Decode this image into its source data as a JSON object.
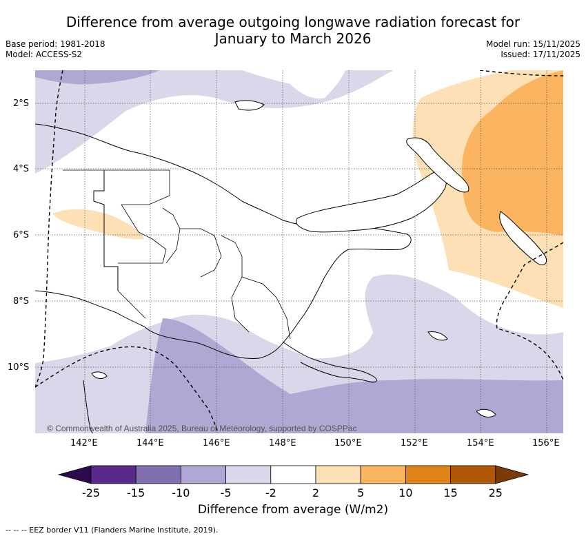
{
  "title_line1": "Difference from average outgoing longwave radiation forecast for",
  "title_line2": "January to March 2026",
  "meta": {
    "base_period": "Base period: 1981-2018",
    "model": "Model: ACCESS-S2",
    "model_run": "Model run: 15/11/2025",
    "issued": "Issued: 17/11/2025"
  },
  "map": {
    "lat_labels": [
      "2°S",
      "4°S",
      "6°S",
      "8°S",
      "10°S"
    ],
    "lon_labels": [
      "142°E",
      "144°E",
      "146°E",
      "148°E",
      "150°E",
      "152°E",
      "154°E",
      "156°E"
    ],
    "copyright": "© Commonwealth of Australia 2025, Bureau of Meteorology, supported by COSPPac"
  },
  "colorbar": {
    "ticks": [
      "-25",
      "-15",
      "-10",
      "-5",
      "-2",
      "2",
      "5",
      "10",
      "15",
      "25"
    ],
    "colors": [
      "#2d0a50",
      "#5a2a8a",
      "#8070b0",
      "#b0a8d2",
      "#d8d8ea",
      "#ffffff",
      "#fde0b5",
      "#fbb560",
      "#e08418",
      "#b05808",
      "#7a3b08"
    ],
    "label": "Difference from average (W/m2)"
  },
  "footnote": "--  --  -- EEZ border V11 (Flanders Marine Institute, 2019)."
}
